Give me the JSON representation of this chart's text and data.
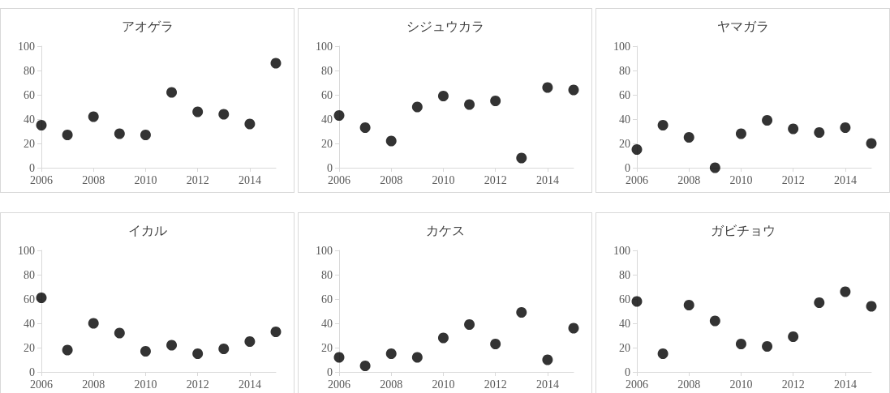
{
  "chart_data": [
    {
      "type": "scatter",
      "title": "アオゲラ",
      "x": [
        2006,
        2007,
        2008,
        2009,
        2010,
        2011,
        2012,
        2013,
        2014,
        2015
      ],
      "values": [
        35,
        27,
        42,
        28,
        27,
        62,
        46,
        44,
        36,
        86
      ],
      "color": "#000000",
      "marker": "circle",
      "xlim": [
        2006,
        2015
      ],
      "xticks": [
        2006,
        2008,
        2010,
        2012,
        2014
      ],
      "ylim": [
        0,
        100
      ],
      "yticks": [
        0,
        20,
        40,
        60,
        80,
        100
      ],
      "grid": false
    },
    {
      "type": "scatter",
      "title": "シジュウカラ",
      "x": [
        2006,
        2007,
        2008,
        2009,
        2010,
        2011,
        2012,
        2013,
        2014,
        2015
      ],
      "values": [
        43,
        33,
        22,
        50,
        59,
        52,
        55,
        8,
        66,
        64
      ],
      "color": "#000000",
      "marker": "circle",
      "xlim": [
        2006,
        2015
      ],
      "xticks": [
        2006,
        2008,
        2010,
        2012,
        2014
      ],
      "ylim": [
        0,
        100
      ],
      "yticks": [
        0,
        20,
        40,
        60,
        80,
        100
      ],
      "grid": false
    },
    {
      "type": "scatter",
      "title": "ヤマガラ",
      "x": [
        2006,
        2007,
        2008,
        2009,
        2010,
        2011,
        2012,
        2013,
        2014,
        2015
      ],
      "values": [
        15,
        35,
        25,
        0,
        28,
        39,
        32,
        29,
        33,
        20
      ],
      "color": "#000000",
      "marker": "circle",
      "xlim": [
        2006,
        2015
      ],
      "xticks": [
        2006,
        2008,
        2010,
        2012,
        2014
      ],
      "ylim": [
        0,
        100
      ],
      "yticks": [
        0,
        20,
        40,
        60,
        80,
        100
      ],
      "grid": false
    },
    {
      "type": "scatter",
      "title": "イカル",
      "x": [
        2006,
        2007,
        2008,
        2009,
        2010,
        2011,
        2012,
        2013,
        2014,
        2015
      ],
      "values": [
        61,
        18,
        40,
        32,
        17,
        22,
        15,
        19,
        25,
        33
      ],
      "color": "#000000",
      "marker": "circle",
      "xlim": [
        2006,
        2015
      ],
      "xticks": [
        2006,
        2008,
        2010,
        2012,
        2014
      ],
      "ylim": [
        0,
        100
      ],
      "yticks": [
        0,
        20,
        40,
        60,
        80,
        100
      ],
      "grid": false
    },
    {
      "type": "scatter",
      "title": "カケス",
      "x": [
        2006,
        2007,
        2008,
        2009,
        2010,
        2011,
        2012,
        2013,
        2014,
        2015
      ],
      "values": [
        12,
        5,
        15,
        12,
        28,
        39,
        23,
        49,
        10,
        36
      ],
      "color": "#000000",
      "marker": "circle",
      "xlim": [
        2006,
        2015
      ],
      "xticks": [
        2006,
        2008,
        2010,
        2012,
        2014
      ],
      "ylim": [
        0,
        100
      ],
      "yticks": [
        0,
        20,
        40,
        60,
        80,
        100
      ],
      "grid": false
    },
    {
      "type": "scatter",
      "title": "ガビチョウ",
      "x": [
        2006,
        2007,
        2008,
        2009,
        2010,
        2011,
        2012,
        2013,
        2014,
        2015
      ],
      "values": [
        58,
        15,
        55,
        42,
        23,
        21,
        29,
        57,
        66,
        54
      ],
      "color": "#000000",
      "marker": "circle",
      "xlim": [
        2006,
        2015
      ],
      "xticks": [
        2006,
        2008,
        2010,
        2012,
        2014
      ],
      "ylim": [
        0,
        100
      ],
      "yticks": [
        0,
        20,
        40,
        60,
        80,
        100
      ],
      "grid": false
    }
  ]
}
